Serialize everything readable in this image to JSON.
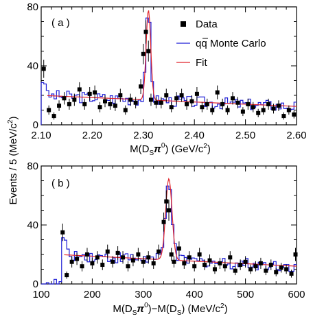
{
  "chart_data": [
    {
      "type": "scatter",
      "panel_label": "( a )",
      "xlabel": "M(D",
      "xlabel_sub": "S",
      "xlabel_mid": "π",
      "xlabel_sup": "0",
      "xlabel_unit": ") (GeV/c",
      "xlabel_unit_sup": "2",
      "xlabel_end": ")",
      "xlim": [
        2.1,
        2.6
      ],
      "ylim": [
        0,
        80
      ],
      "xticks": [
        "2.10",
        "2.20",
        "2.30",
        "2.40",
        "2.50",
        "2.60"
      ],
      "yticks": [
        "0",
        "40",
        "80"
      ],
      "legend": {
        "data": "Data",
        "mc_pre": "q",
        "mc_post": " Monte Carlo",
        "mc_bar": "q",
        "fit": "Fit"
      },
      "colors": {
        "mc": "#1f1fd6",
        "fit": "#e0232a",
        "data": "#000000"
      },
      "data_points": {
        "x": [
          2.105,
          2.115,
          2.125,
          2.135,
          2.145,
          2.155,
          2.165,
          2.175,
          2.185,
          2.195,
          2.205,
          2.215,
          2.225,
          2.235,
          2.245,
          2.255,
          2.265,
          2.275,
          2.285,
          2.295,
          2.3,
          2.305,
          2.31,
          2.315,
          2.325,
          2.335,
          2.345,
          2.355,
          2.365,
          2.375,
          2.385,
          2.395,
          2.405,
          2.415,
          2.425,
          2.435,
          2.445,
          2.455,
          2.465,
          2.475,
          2.485,
          2.495,
          2.505,
          2.515,
          2.525,
          2.535,
          2.545,
          2.555,
          2.565,
          2.575,
          2.585,
          2.595
        ],
        "y": [
          38,
          10,
          6,
          13,
          18,
          14,
          17,
          24,
          14,
          21,
          22,
          12,
          16,
          14,
          13,
          20,
          10,
          17,
          15,
          26,
          48,
          63,
          50,
          17,
          15,
          15,
          20,
          12,
          18,
          20,
          14,
          16,
          21,
          12,
          14,
          10,
          22,
          14,
          10,
          18,
          15,
          9,
          14,
          12,
          8,
          10,
          14,
          11,
          13,
          6,
          10,
          7
        ]
      }
    },
    {
      "type": "scatter",
      "panel_label": "( b )",
      "xlabel": "M(D",
      "xlabel_sub": "S",
      "xlabel_mid": "π",
      "xlabel_sup": "0",
      "xlabel_mid2": ")−M(D",
      "xlabel_sub2": "S",
      "xlabel_unit": ") (MeV/c",
      "xlabel_unit_sup": "2",
      "xlabel_end": ")",
      "xlim": [
        100,
        600
      ],
      "ylim": [
        0,
        80
      ],
      "xticks": [
        "100",
        "200",
        "300",
        "400",
        "500",
        "600"
      ],
      "yticks": [
        "0",
        "40",
        "80"
      ],
      "colors": {
        "mc": "#1f1fd6",
        "fit": "#e0232a",
        "data": "#000000"
      },
      "data_points": {
        "x": [
          142,
          150,
          160,
          170,
          180,
          190,
          200,
          210,
          220,
          230,
          240,
          250,
          260,
          270,
          280,
          290,
          300,
          310,
          320,
          330,
          340,
          345,
          350,
          355,
          360,
          370,
          380,
          390,
          400,
          410,
          420,
          430,
          440,
          450,
          460,
          470,
          480,
          490,
          500,
          510,
          520,
          530,
          540,
          550,
          560,
          570,
          580,
          590,
          598
        ],
        "y": [
          35,
          6,
          15,
          17,
          12,
          20,
          14,
          18,
          13,
          22,
          15,
          21,
          18,
          12,
          16,
          20,
          15,
          18,
          14,
          22,
          42,
          56,
          50,
          20,
          15,
          24,
          14,
          18,
          12,
          20,
          13,
          16,
          10,
          14,
          12,
          18,
          9,
          13,
          15,
          10,
          12,
          14,
          9,
          13,
          8,
          11,
          10,
          7,
          20
        ]
      }
    }
  ],
  "ylabel": "Events / 5 (MeV/c",
  "ylabel_sup": "2",
  "ylabel_end": ")"
}
